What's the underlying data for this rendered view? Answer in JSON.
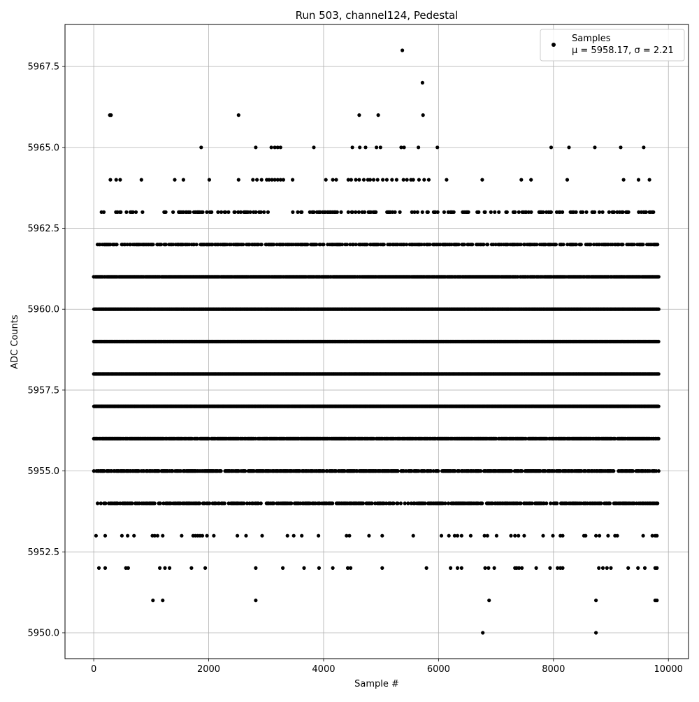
{
  "chart_data": {
    "type": "scatter",
    "title": "Run 503, channel124, Pedestal",
    "xlabel": "Sample #",
    "ylabel": "ADC Counts",
    "xlim": [
      -500,
      10350
    ],
    "ylim": [
      5949.2,
      5968.8
    ],
    "xticks": [
      0,
      2000,
      4000,
      6000,
      8000,
      10000
    ],
    "xtick_labels": [
      "0",
      "2000",
      "4000",
      "6000",
      "8000",
      "10000"
    ],
    "yticks": [
      5950.0,
      5952.5,
      5955.0,
      5957.5,
      5960.0,
      5962.5,
      5965.0,
      5967.5
    ],
    "ytick_labels": [
      "5950.0",
      "5952.5",
      "5955.0",
      "5957.5",
      "5960.0",
      "5962.5",
      "5965.0",
      "5967.5"
    ],
    "grid": true,
    "legend_position": "top-right",
    "marker_color": "#000000",
    "series": [
      {
        "name": "Samples",
        "annotation": "μ = 5958.17, σ = 2.21",
        "level_runs": [
          {
            "y": 5950,
            "x": [
              6770,
              8740
            ]
          },
          {
            "y": 5951,
            "x": [
              1030,
              1200,
              2820,
              6880,
              8740,
              9770,
              9800
            ]
          },
          {
            "y": 5952,
            "x": [
              90,
              200,
              560,
              600,
              1150,
              1240,
              1320,
              1700,
              1940,
              2820,
              3290,
              3660,
              3920,
              4160,
              4420,
              4470,
              5020,
              5790,
              6210,
              6330,
              6400,
              6810,
              6870,
              6970,
              7330,
              7360,
              7400,
              7450,
              7700,
              7940,
              8070,
              8120,
              8160,
              8790,
              8860,
              8930,
              9000,
              9300,
              9470,
              9590,
              9770,
              9800
            ]
          },
          {
            "y": 5953,
            "x": [
              40,
              200,
              490,
              590,
              700,
              1020,
              1060,
              1110,
              1200,
              1530,
              1730,
              1770,
              1810,
              1850,
              1890,
              1970,
              2090,
              2500,
              2650,
              2930,
              3370,
              3480,
              3620,
              3910,
              4400,
              4450,
              4790,
              5020,
              5560,
              6050,
              6180,
              6280,
              6330,
              6400,
              6560,
              6800,
              6850,
              7010,
              7260,
              7330,
              7390,
              7490,
              7820,
              7990,
              8120,
              8160,
              8530,
              8560,
              8740,
              8800,
              8950,
              9070,
              9110,
              9560,
              9720,
              9770,
              9800
            ]
          },
          {
            "y": 5964,
            "x": [
              290,
              390,
              460,
              830,
              1410,
              1560,
              2010,
              2520,
              2770,
              2840,
              2920,
              3010,
              3050,
              3100,
              3150,
              3200,
              3250,
              3300,
              3460,
              4040,
              4160,
              4220,
              4430,
              4480,
              4560,
              4620,
              4700,
              4770,
              4810,
              4870,
              4940,
              5030,
              5100,
              5190,
              5270,
              5390,
              5450,
              5520,
              5560,
              5660,
              5750,
              5830,
              6140,
              6760,
              7440,
              7610,
              8240,
              9220,
              9480,
              9670
            ]
          },
          {
            "y": 5965,
            "x": [
              1870,
              2820,
              3090,
              3150,
              3200,
              3250,
              3830,
              4500,
              4630,
              4730,
              4920,
              4990,
              5350,
              5400,
              5650,
              5980,
              7960,
              8270,
              8720,
              9170,
              9570
            ]
          },
          {
            "y": 5966,
            "x": [
              280,
              300,
              2520,
              4620,
              4950,
              5730
            ]
          },
          {
            "y": 5967,
            "x": [
              5720
            ]
          },
          {
            "y": 5968,
            "x": [
              5370
            ]
          }
        ],
        "dense_levels": [
          {
            "y": 5954,
            "density": 0.6,
            "x_range": [
              50,
              9830
            ]
          },
          {
            "y": 5955,
            "density": 0.75,
            "x_range": [
              0,
              9830
            ]
          },
          {
            "y": 5956,
            "density": 0.9,
            "x_range": [
              0,
              9830
            ]
          },
          {
            "y": 5957,
            "density": 1.0,
            "x_range": [
              0,
              9830
            ]
          },
          {
            "y": 5958,
            "density": 1.0,
            "x_range": [
              0,
              9830
            ]
          },
          {
            "y": 5959,
            "density": 1.0,
            "x_range": [
              0,
              9830
            ]
          },
          {
            "y": 5960,
            "density": 1.0,
            "x_range": [
              0,
              9830
            ]
          },
          {
            "y": 5961,
            "density": 0.92,
            "x_range": [
              0,
              9830
            ]
          },
          {
            "y": 5962,
            "density": 0.55,
            "x_range": [
              50,
              9830
            ]
          },
          {
            "y": 5963,
            "density": 0.28,
            "x_range": [
              90,
              9810
            ]
          }
        ]
      }
    ]
  }
}
